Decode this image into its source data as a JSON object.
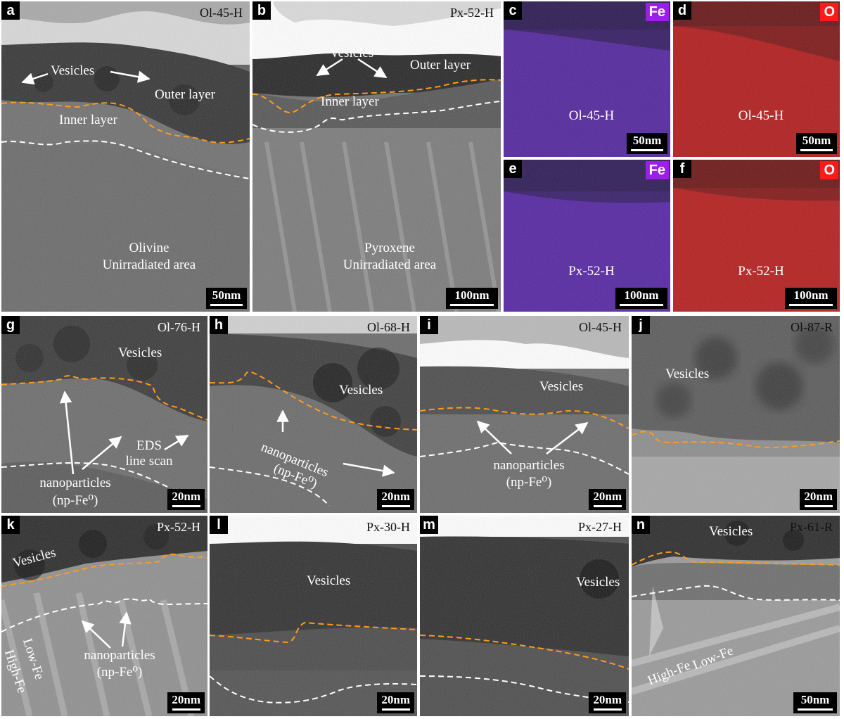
{
  "panels": {
    "a": {
      "letter": "a",
      "sample": "Ol-45-H",
      "scale": "50nm",
      "vesicles": "Vesicles",
      "outer": "Outer layer",
      "inner": "Inner layer",
      "mineral": "Olivine",
      "area": "Unirradiated area"
    },
    "b": {
      "letter": "b",
      "sample": "Px-52-H",
      "scale": "100nm",
      "vesicles": "Vesicles",
      "outer": "Outer layer",
      "inner": "Inner layer",
      "mineral": "Pyroxene",
      "area": "Unirradiated area"
    },
    "c": {
      "letter": "c",
      "element": "Fe",
      "element_color": "#9b1fe8",
      "sample": "Ol-45-H",
      "scale": "50nm"
    },
    "d": {
      "letter": "d",
      "element": "O",
      "element_color": "#ff1a1a",
      "sample": "Ol-45-H",
      "scale": "50nm"
    },
    "e": {
      "letter": "e",
      "element": "Fe",
      "element_color": "#9b1fe8",
      "sample": "Px-52-H",
      "scale": "100nm"
    },
    "f": {
      "letter": "f",
      "element": "O",
      "element_color": "#ff1a1a",
      "sample": "Px-52-H",
      "scale": "100nm"
    },
    "g": {
      "letter": "g",
      "sample": "Ol-76-H",
      "scale": "20nm",
      "vesicles": "Vesicles",
      "eds1": "EDS",
      "eds2": "line scan",
      "np1": "nanoparticles",
      "np2": "(np-Fe⁰)"
    },
    "h": {
      "letter": "h",
      "sample": "Ol-68-H",
      "scale": "20nm",
      "vesicles": "Vesicles",
      "np1": "nanoparticles",
      "np2": "(np-Fe⁰)"
    },
    "i": {
      "letter": "i",
      "sample": "Ol-45-H",
      "scale": "20nm",
      "vesicles": "Vesicles",
      "np1": "nanoparticles",
      "np2": "(np-Fe⁰)"
    },
    "j": {
      "letter": "j",
      "sample": "Ol-87-R",
      "scale": "20nm",
      "vesicles": "Vesicles"
    },
    "k": {
      "letter": "k",
      "sample": "Px-52-H",
      "scale": "20nm",
      "vesicles": "Vesicles",
      "np1": "nanoparticles",
      "np2": "(np-Fe⁰)",
      "lowfe": "Low-Fe",
      "highfe": "High-Fe"
    },
    "l": {
      "letter": "l",
      "sample": "Px-30-H",
      "scale": "20nm",
      "vesicles": "Vesicles"
    },
    "m": {
      "letter": "m",
      "sample": "Px-27-H",
      "scale": "20nm",
      "vesicles": "Vesicles"
    },
    "n": {
      "letter": "n",
      "sample": "Px-61-R",
      "scale": "50nm",
      "vesicles": "Vesicles",
      "highfe": "High-Fe",
      "lowfe": "Low-Fe"
    }
  }
}
